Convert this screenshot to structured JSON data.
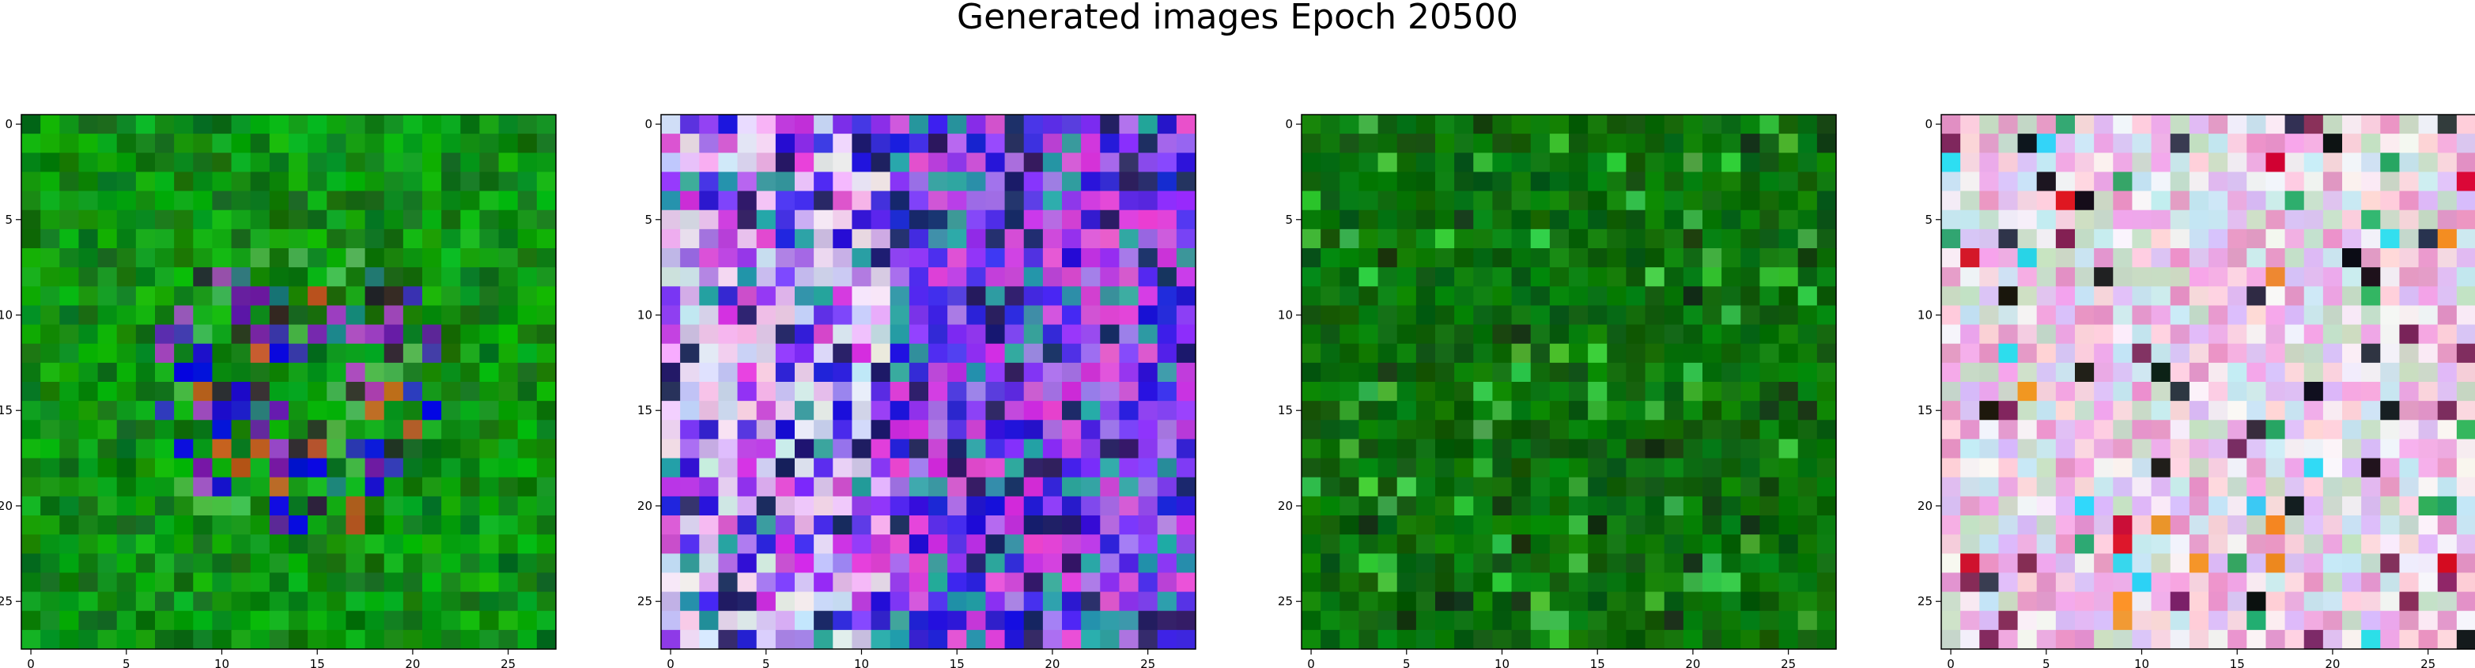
{
  "figure": {
    "title": "Generated images Epoch 20500"
  },
  "chart_data": [
    {
      "type": "heatmap",
      "description_role": "generated image 1",
      "grid_size": 28,
      "palette": "green",
      "xticks": [
        0,
        5,
        10,
        15,
        20,
        25
      ],
      "yticks": [
        0,
        5,
        10,
        15,
        20,
        25
      ],
      "xlim": [
        -0.5,
        27.5
      ],
      "ylim": [
        27.5,
        -0.5
      ],
      "pixels": "28x28 RGB noise, predominantly green with a central cluster of blue, purple, teal and dark pixels around rows 6-22"
    },
    {
      "type": "heatmap",
      "description_role": "generated image 2",
      "grid_size": 28,
      "palette": "purple",
      "xticks": [
        0,
        5,
        10,
        15,
        20,
        25
      ],
      "yticks": [
        0,
        5,
        10,
        15,
        20,
        25
      ],
      "xlim": [
        -0.5,
        27.5
      ],
      "ylim": [
        27.5,
        -0.5
      ],
      "pixels": "28x28 RGB noise, predominantly violet/blue/magenta with pale lavender and pink pixels on the left side"
    },
    {
      "type": "heatmap",
      "description_role": "generated image 3",
      "grid_size": 28,
      "palette": "darkgreen",
      "xticks": [
        0,
        5,
        10,
        15,
        20,
        25
      ],
      "yticks": [
        0,
        5,
        10,
        15,
        20,
        25
      ],
      "xlim": [
        -0.5,
        27.5
      ],
      "ylim": [
        27.5,
        -0.5
      ],
      "pixels": "28x28 RGB noise, nearly uniform dark and medium green with a few brighter green and near-black pixels"
    },
    {
      "type": "heatmap",
      "description_role": "generated image 4",
      "grid_size": 28,
      "palette": "pastel",
      "xticks": [
        0,
        5,
        10,
        15,
        20,
        25
      ],
      "yticks": [
        0,
        5,
        10,
        15,
        20,
        25
      ],
      "xlim": [
        -0.5,
        27.5
      ],
      "ylim": [
        27.5,
        -0.5
      ],
      "pixels": "28x28 RGB noise, pastel pinks, whites and light blues with scattered saturated red, green, cyan, orange and black pixels"
    }
  ]
}
